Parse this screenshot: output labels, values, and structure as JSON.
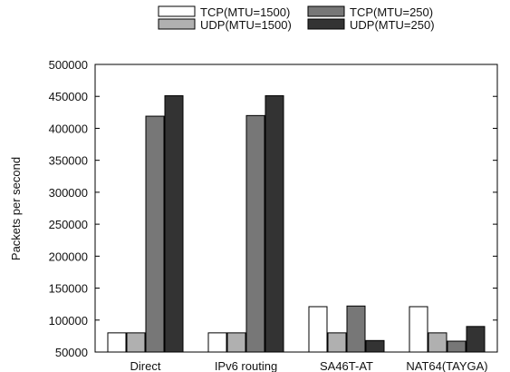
{
  "chart_data": {
    "type": "bar",
    "title": "",
    "xlabel": "",
    "ylabel": "Packets per second",
    "ylim": [
      50000,
      500000
    ],
    "yticks": [
      50000,
      100000,
      150000,
      200000,
      250000,
      300000,
      350000,
      400000,
      450000,
      500000
    ],
    "grid": false,
    "legend_position": "top",
    "categories": [
      "Direct",
      "IPv6 routing",
      "SA46T-AT",
      "NAT64(TAYGA)"
    ],
    "series": [
      {
        "name": "TCP(MTU=1500)",
        "color": "#ffffff",
        "values": [
          80000,
          80000,
          121000,
          121000
        ]
      },
      {
        "name": "UDP(MTU=1500)",
        "color": "#b0b0b0",
        "values": [
          80000,
          80000,
          80000,
          80000
        ]
      },
      {
        "name": "TCP(MTU=250)",
        "color": "#777777",
        "values": [
          419000,
          420000,
          122000,
          67000
        ]
      },
      {
        "name": "UDP(MTU=250)",
        "color": "#333333",
        "values": [
          451000,
          451000,
          68000,
          90000
        ]
      }
    ]
  }
}
